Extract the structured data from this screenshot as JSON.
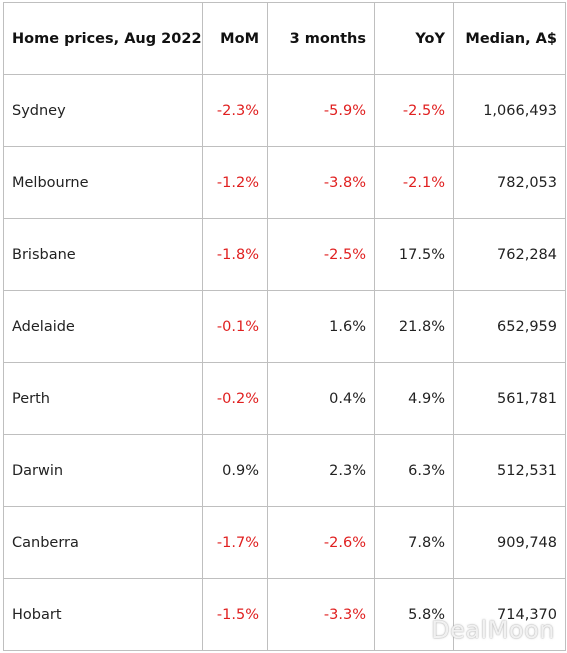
{
  "table": {
    "headers": [
      "Home prices, Aug 2022",
      "MoM",
      "3 months",
      "YoY",
      "Median, A$"
    ],
    "rows": [
      {
        "city": "Sydney",
        "mom": "-2.3%",
        "three_months": "-5.9%",
        "yoy": "-2.5%",
        "median": "1,066,493"
      },
      {
        "city": "Melbourne",
        "mom": "-1.2%",
        "three_months": "-3.8%",
        "yoy": "-2.1%",
        "median": "782,053"
      },
      {
        "city": "Brisbane",
        "mom": "-1.8%",
        "three_months": "-2.5%",
        "yoy": "17.5%",
        "median": "762,284"
      },
      {
        "city": "Adelaide",
        "mom": "-0.1%",
        "three_months": "1.6%",
        "yoy": "21.8%",
        "median": "652,959"
      },
      {
        "city": "Perth",
        "mom": "-0.2%",
        "three_months": "0.4%",
        "yoy": "4.9%",
        "median": "561,781"
      },
      {
        "city": "Darwin",
        "mom": "0.9%",
        "three_months": "2.3%",
        "yoy": "6.3%",
        "median": "512,531"
      },
      {
        "city": "Canberra",
        "mom": "-1.7%",
        "three_months": "-2.6%",
        "yoy": "7.8%",
        "median": "909,748"
      },
      {
        "city": "Hobart",
        "mom": "-1.5%",
        "three_months": "-3.3%",
        "yoy": "5.8%",
        "median": "714,370"
      }
    ]
  },
  "colors": {
    "negative": "#e02020",
    "text": "#222222",
    "border": "#bfbfbf"
  },
  "watermark": "DealMoon"
}
